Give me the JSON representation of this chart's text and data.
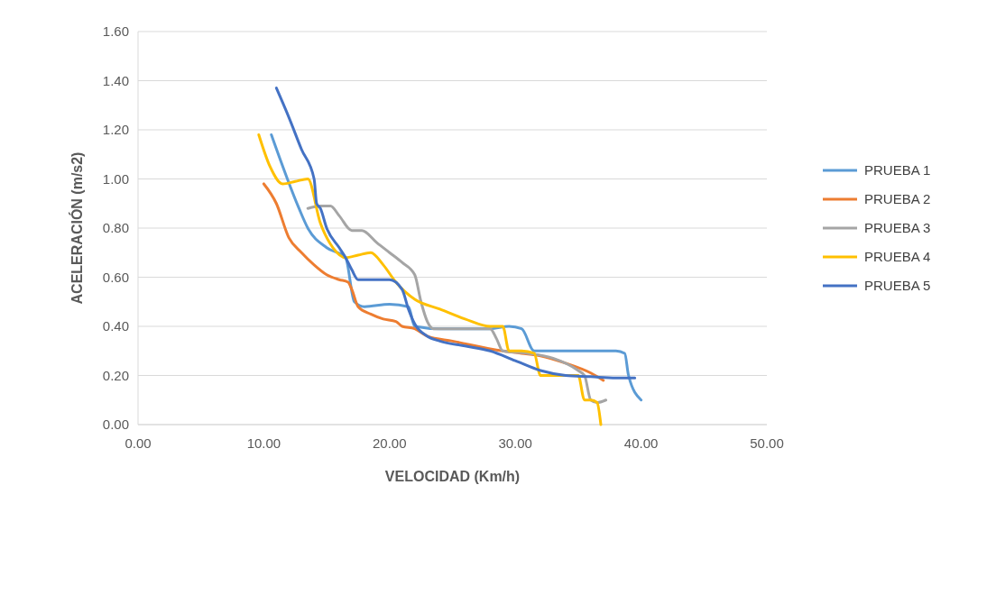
{
  "chart_data": {
    "type": "line",
    "xlabel": "VELOCIDAD (Km/h)",
    "ylabel": "ACELERACIÓN (m/s2)",
    "xlim": [
      0,
      50
    ],
    "ylim": [
      0,
      1.6
    ],
    "xticks": [
      {
        "value": 0,
        "label": "0.00"
      },
      {
        "value": 10,
        "label": "10.00"
      },
      {
        "value": 20,
        "label": "20.00"
      },
      {
        "value": 30,
        "label": "30.00"
      },
      {
        "value": 40,
        "label": "40.00"
      },
      {
        "value": 50,
        "label": "50.00"
      }
    ],
    "yticks": [
      {
        "value": 0,
        "label": "0.00"
      },
      {
        "value": 0.2,
        "label": "0.20"
      },
      {
        "value": 0.4,
        "label": "0.40"
      },
      {
        "value": 0.6,
        "label": "0.60"
      },
      {
        "value": 0.8,
        "label": "0.80"
      },
      {
        "value": 1,
        "label": "1.00"
      },
      {
        "value": 1.2,
        "label": "1.20"
      },
      {
        "value": 1.4,
        "label": "1.40"
      },
      {
        "value": 1.6,
        "label": "1.60"
      }
    ],
    "grid": "y",
    "legend": "right",
    "marker": "none",
    "line_style": "solid",
    "series": [
      {
        "name": "PRUEBA 1",
        "color": "#5b9bd5",
        "x": [
          10.6,
          12.8,
          13.5,
          15,
          16.5,
          17.2,
          18,
          20,
          21.5,
          22,
          24,
          28,
          29.5,
          30.5,
          31.5,
          35,
          38,
          38.7,
          39,
          40
        ],
        "values": [
          1.18,
          0.88,
          0.8,
          0.72,
          0.68,
          0.5,
          0.48,
          0.49,
          0.48,
          0.4,
          0.39,
          0.39,
          0.4,
          0.39,
          0.3,
          0.3,
          0.3,
          0.29,
          0.2,
          0.1
        ]
      },
      {
        "name": "PRUEBA 2",
        "color": "#ed7d31",
        "x": [
          10,
          11,
          12,
          13,
          14,
          15,
          16,
          16.7,
          17,
          17.5,
          18.5,
          19.5,
          20.5,
          21,
          22,
          23,
          25,
          29,
          30.5,
          32,
          34,
          36,
          37
        ],
        "values": [
          0.98,
          0.9,
          0.76,
          0.7,
          0.65,
          0.61,
          0.59,
          0.58,
          0.55,
          0.48,
          0.45,
          0.43,
          0.42,
          0.4,
          0.39,
          0.36,
          0.34,
          0.3,
          0.29,
          0.28,
          0.25,
          0.21,
          0.18
        ]
      },
      {
        "name": "PRUEBA 3",
        "color": "#a5a5a5",
        "x": [
          13.5,
          14.5,
          15.3,
          16,
          17,
          17.8,
          19,
          20,
          21,
          22,
          22.5,
          23,
          23.5,
          25,
          28,
          28.5,
          29,
          31,
          33,
          35,
          35.5,
          36,
          36.5,
          37.2
        ],
        "values": [
          0.88,
          0.89,
          0.89,
          0.85,
          0.79,
          0.79,
          0.74,
          0.7,
          0.66,
          0.61,
          0.5,
          0.42,
          0.39,
          0.39,
          0.39,
          0.35,
          0.3,
          0.29,
          0.27,
          0.22,
          0.2,
          0.1,
          0.09,
          0.1
        ]
      },
      {
        "name": "PRUEBA 4",
        "color": "#ffc000",
        "x": [
          9.6,
          10.5,
          11.5,
          12.5,
          13.5,
          14.5,
          15.5,
          16.5,
          17.5,
          18.5,
          19.5,
          20.5,
          22,
          24,
          26,
          28,
          29,
          29.5,
          30.5,
          31.5,
          32,
          34,
          35,
          35.5,
          36,
          36.5,
          36.8
        ],
        "values": [
          1.18,
          1.05,
          0.98,
          0.99,
          1,
          0.82,
          0.72,
          0.68,
          0.69,
          0.7,
          0.65,
          0.58,
          0.51,
          0.47,
          0.43,
          0.4,
          0.4,
          0.3,
          0.3,
          0.29,
          0.2,
          0.2,
          0.2,
          0.1,
          0.1,
          0.09,
          0
        ]
      },
      {
        "name": "PRUEBA 5",
        "color": "#4472c4",
        "x": [
          11,
          12,
          13,
          14,
          14.2,
          14.5,
          15,
          16,
          16.5,
          17,
          17.5,
          18.5,
          20,
          21,
          21.5,
          22,
          23,
          24,
          26,
          28,
          30,
          32,
          34,
          36,
          38,
          39.5
        ],
        "values": [
          1.37,
          1.25,
          1.12,
          1,
          0.9,
          0.88,
          0.8,
          0.72,
          0.68,
          0.63,
          0.59,
          0.59,
          0.59,
          0.55,
          0.47,
          0.41,
          0.36,
          0.34,
          0.32,
          0.3,
          0.26,
          0.22,
          0.2,
          0.195,
          0.19,
          0.19
        ]
      }
    ]
  }
}
